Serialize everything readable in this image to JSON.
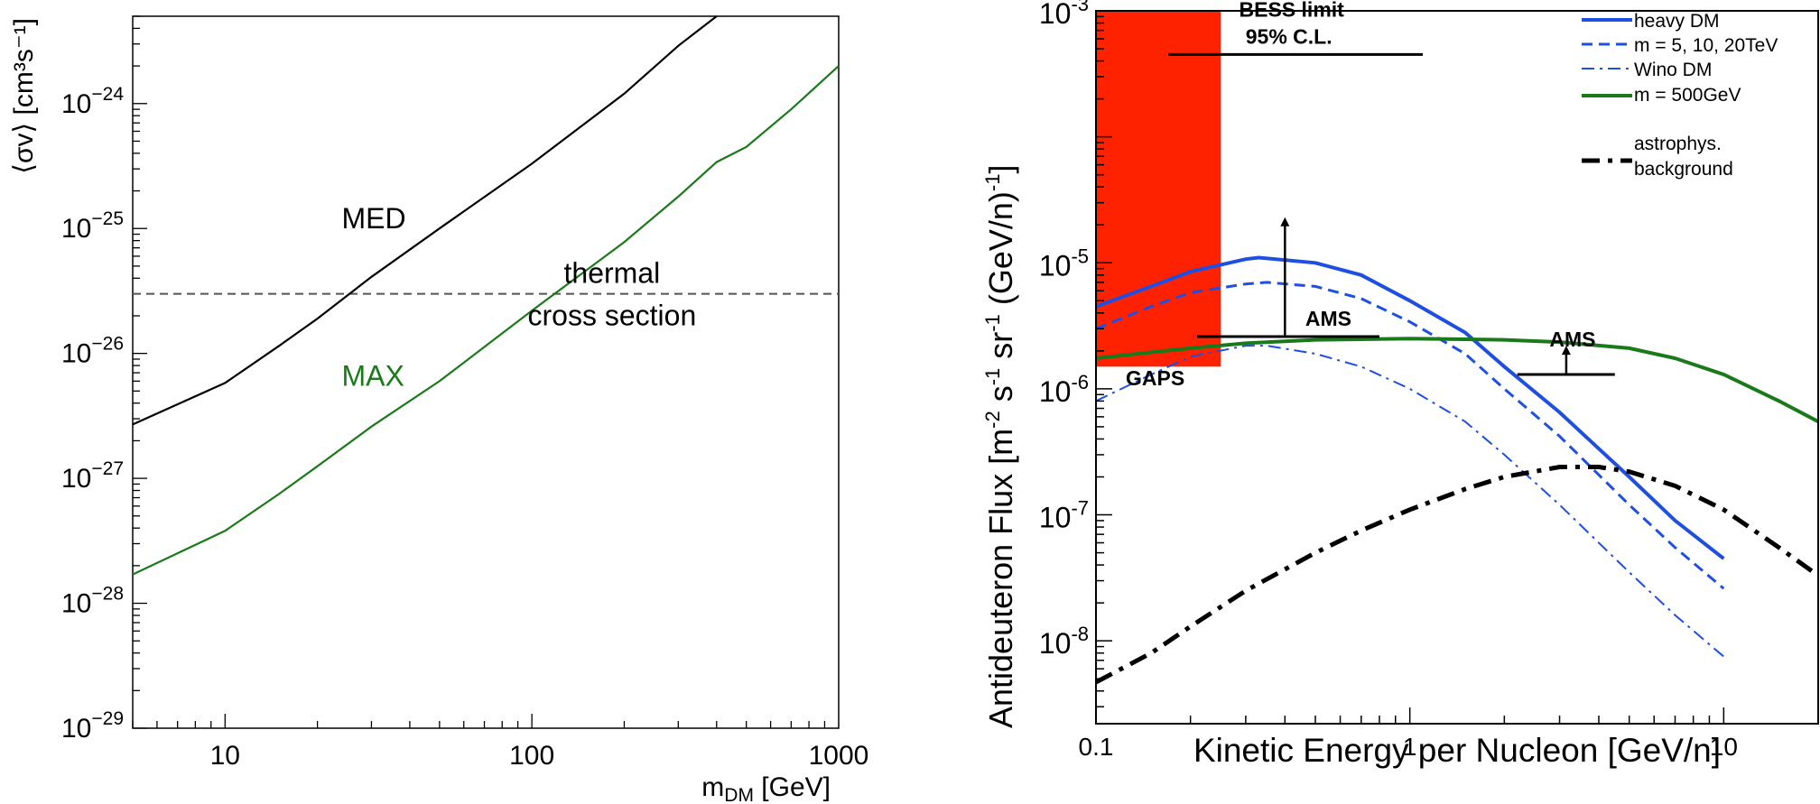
{
  "chart_data": [
    {
      "type": "line",
      "x_scale": "log",
      "y_scale": "log",
      "xlim": [
        5,
        1000
      ],
      "ylim": [
        1e-29,
        5e-24
      ],
      "xlabel": {
        "main": "m",
        "sub": "DM",
        "rest": " [GeV]"
      },
      "ylabel": "⟨σv⟩ [cm³s⁻¹]",
      "x_ticks": [
        {
          "value": 10,
          "label": "10"
        },
        {
          "value": 100,
          "label": "100"
        },
        {
          "value": 1000,
          "label": "1000"
        }
      ],
      "y_ticks": [
        {
          "value": 1e-29,
          "base": "10",
          "exp": "−29"
        },
        {
          "value": 1e-28,
          "base": "10",
          "exp": "−28"
        },
        {
          "value": 1e-27,
          "base": "10",
          "exp": "−27"
        },
        {
          "value": 1e-26,
          "base": "10",
          "exp": "−26"
        },
        {
          "value": 1e-25,
          "base": "10",
          "exp": "−25"
        },
        {
          "value": 1e-24,
          "base": "10",
          "exp": "−24"
        }
      ],
      "series": [
        {
          "name": "MED",
          "color": "#000000",
          "x": [
            5,
            10,
            15,
            20,
            30,
            50,
            100,
            200,
            300,
            400
          ],
          "y": [
            2.7e-27,
            5.8e-27,
            1.15e-26,
            1.9e-26,
            4.1e-26,
            1e-25,
            3.3e-25,
            1.2e-24,
            2.9e-24,
            5e-24
          ]
        },
        {
          "name": "MAX",
          "color": "#1a7a1a",
          "x": [
            5,
            10,
            15,
            20,
            30,
            50,
            100,
            150,
            200,
            300,
            400,
            500,
            700,
            1000
          ],
          "y": [
            1.7e-28,
            3.8e-28,
            7.5e-28,
            1.25e-27,
            2.6e-27,
            6e-27,
            2.2e-26,
            4.6e-26,
            7.8e-26,
            1.8e-25,
            3.4e-25,
            4.5e-25,
            9e-25,
            2e-24
          ]
        }
      ],
      "reference_line": {
        "y": 3e-26,
        "label_line1": "thermal",
        "label_line2": "cross section",
        "color": "#555555",
        "style": "dashed"
      },
      "annotations": [
        {
          "text": "MED",
          "x": 24,
          "y": 1e-25,
          "color": "#000000"
        },
        {
          "text": "MAX",
          "x": 24,
          "y": 5.5e-27,
          "color": "#1a7a1a"
        }
      ]
    },
    {
      "type": "line",
      "x_scale": "log",
      "y_scale": "log",
      "xlim": [
        0.1,
        20
      ],
      "ylim": [
        2.2e-09,
        0.001
      ],
      "xlabel": "Kinetic Energy per Nucleon [GeV/n]",
      "ylabel": {
        "a": "Antideuteron Flux [m",
        "a_sup": "-2",
        "b": " s",
        "b_sup": "-1",
        "c": " sr",
        "c_sup": "-1",
        "d": " (GeV/n)",
        "d_sup": "-1",
        "e": "]"
      },
      "x_ticks": [
        {
          "value": 0.1,
          "label": "0.1"
        },
        {
          "value": 1,
          "label": "1"
        },
        {
          "value": 10,
          "label": "10"
        }
      ],
      "y_ticks": [
        {
          "value": 1e-08,
          "base": "10",
          "exp": "-8"
        },
        {
          "value": 1e-07,
          "base": "10",
          "exp": "-7"
        },
        {
          "value": 1e-06,
          "base": "10",
          "exp": "-6"
        },
        {
          "value": 1e-05,
          "base": "10",
          "exp": "-5"
        },
        {
          "value": 0.001,
          "base": "10",
          "exp": "-3"
        }
      ],
      "series": [
        {
          "name": "heavy DM",
          "color": "#1f4fe0",
          "style": "solid",
          "width": 4,
          "x": [
            0.1,
            0.15,
            0.2,
            0.3,
            0.33,
            0.5,
            0.7,
            1.0,
            1.5,
            2.0,
            3.0,
            5.0,
            7.0,
            10.0
          ],
          "y": [
            4.5e-06,
            6.5e-06,
            8.5e-06,
            1.07e-05,
            1.1e-05,
            1e-05,
            8e-06,
            5e-06,
            2.8e-06,
            1.5e-06,
            6.5e-07,
            2e-07,
            9e-08,
            4.5e-08
          ]
        },
        {
          "name": "m = 5, 10, 20TeV",
          "color": "#1f4fe0",
          "style": "dashed",
          "width": 3,
          "x": [
            0.1,
            0.15,
            0.2,
            0.3,
            0.35,
            0.5,
            0.7,
            1.0,
            1.5,
            2.0,
            3.0,
            5.0,
            7.0,
            10.0
          ],
          "y": [
            3e-06,
            4.5e-06,
            5.8e-06,
            6.8e-06,
            7e-06,
            6.5e-06,
            5.2e-06,
            3.4e-06,
            1.9e-06,
            1e-06,
            4.2e-07,
            1.2e-07,
            5.5e-08,
            2.6e-08
          ]
        },
        {
          "name": "m = 5, 10, 20TeV",
          "color": "#1f4fe0",
          "style": "dashdot",
          "width": 2,
          "x": [
            0.1,
            0.15,
            0.2,
            0.3,
            0.35,
            0.5,
            0.7,
            1.0,
            1.5,
            2.0,
            3.0,
            5.0,
            7.0,
            10.0
          ],
          "y": [
            8e-07,
            1.3e-06,
            1.8e-06,
            2.2e-06,
            2.2e-06,
            1.9e-06,
            1.5e-06,
            1e-06,
            5.5e-07,
            3e-07,
            1.2e-07,
            3.5e-08,
            1.6e-08,
            7.5e-09
          ]
        },
        {
          "name": "Wino DM\nm = 500GeV",
          "color": "#1a7a1a",
          "style": "solid",
          "width": 4,
          "x": [
            0.1,
            0.15,
            0.2,
            0.3,
            0.5,
            1.0,
            2.0,
            3.0,
            5.0,
            7.0,
            10.0,
            15.0,
            20.0
          ],
          "y": [
            1.75e-06,
            1.95e-06,
            2.1e-06,
            2.3e-06,
            2.45e-06,
            2.5e-06,
            2.45e-06,
            2.35e-06,
            2.1e-06,
            1.75e-06,
            1.3e-06,
            8e-07,
            5.5e-07
          ]
        },
        {
          "name": "astrophys.\nbackground",
          "color": "#000000",
          "style": "dashdot",
          "width": 5,
          "x": [
            0.1,
            0.15,
            0.2,
            0.3,
            0.5,
            0.7,
            1.0,
            1.5,
            2.0,
            3.0,
            4.0,
            5.0,
            7.0,
            10.0,
            15.0,
            20.0
          ],
          "y": [
            4.7e-09,
            8e-09,
            1.3e-08,
            2.5e-08,
            5e-08,
            7.5e-08,
            1.1e-07,
            1.6e-07,
            2e-07,
            2.4e-07,
            2.4e-07,
            2.2e-07,
            1.7e-07,
            1.1e-07,
            5.5e-08,
            3.3e-08
          ]
        }
      ],
      "shaded_region": {
        "x": [
          0.1,
          0.25
        ],
        "y": [
          1.5e-06,
          0.001
        ],
        "color": "#ff2200",
        "label": "GAPS"
      },
      "limits": [
        {
          "label1": "BESS limit",
          "label2": "95% C.L.",
          "x": [
            0.17,
            1.1
          ],
          "y": 0.00045,
          "arrow": false
        },
        {
          "label1": "AMS",
          "x": [
            0.21,
            0.8
          ],
          "y": 2.6e-06,
          "arrow": true,
          "arrow_top": 2.3e-05
        },
        {
          "label1": "AMS",
          "x": [
            2.2,
            4.5
          ],
          "y": 1.3e-06,
          "arrow": true,
          "arrow_top": 2.2e-06
        }
      ],
      "legend": {
        "position": "top-right"
      }
    }
  ]
}
